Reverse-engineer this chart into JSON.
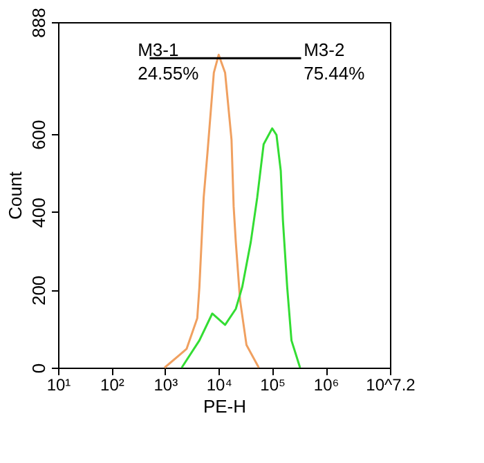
{
  "chart_data": {
    "type": "line",
    "xlabel": "PE-H",
    "ylabel": "Count",
    "log": "x",
    "grid": false,
    "marker": "none",
    "line_style": "solid",
    "xlim": [
      10,
      15848932
    ],
    "ylim": [
      0,
      888
    ],
    "xticks": [
      {
        "value": 10,
        "label": "10¹"
      },
      {
        "value": 100,
        "label": "10²"
      },
      {
        "value": 1000,
        "label": "10³"
      },
      {
        "value": 10000,
        "label": "10⁴"
      },
      {
        "value": 100000,
        "label": "10⁵"
      },
      {
        "value": 1000000,
        "label": "10⁶"
      },
      {
        "value": 15848932,
        "label": "10^7.2"
      }
    ],
    "yticks": [
      0,
      200,
      400,
      600,
      888
    ],
    "series": [
      {
        "color": "#f0a060",
        "x": [
          977,
          2512,
          3981,
          4365,
          5248,
          6166,
          8128,
          10000,
          13183,
          17378,
          19055,
          20893,
          25119,
          33113,
          56234
        ],
        "values": [
          0,
          48,
          127,
          207,
          437,
          551,
          758,
          804,
          758,
          586,
          414,
          323,
          173,
          58,
          0
        ]
      },
      {
        "color": "#33dd33",
        "x": [
          2042,
          4365,
          7586,
          13183,
          20893,
          27542,
          39811,
          52481,
          69183,
          100000,
          120226,
          144544,
          158489,
          190546,
          229087,
          331131
        ],
        "values": [
          0,
          70,
          139,
          110,
          151,
          207,
          323,
          437,
          574,
          615,
          598,
          506,
          379,
          207,
          70,
          0
        ]
      },
      {
        "color": "#000000",
        "x": [
          513,
          30903,
          346737
        ],
        "values": [
          795,
          795,
          795
        ]
      }
    ],
    "annotations": [
      "M3-1",
      "24.55%",
      "M3-2",
      "75.44%"
    ]
  }
}
